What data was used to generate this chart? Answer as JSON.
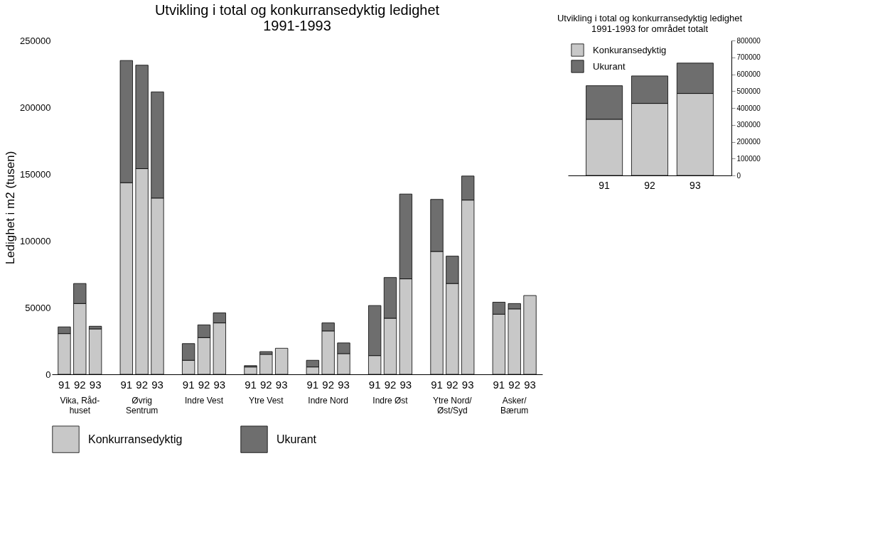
{
  "chart_data": [
    {
      "type": "bar",
      "title": "Utvikling i total og konkurransedyktig ledighet\n1991-1993",
      "ylabel": "Ledighet i m2 (tusen)",
      "categories": [
        "91",
        "92",
        "93",
        "91",
        "92",
        "93",
        "91",
        "92",
        "93",
        "91",
        "92",
        "93",
        "91",
        "92",
        "93",
        "91",
        "92",
        "93",
        "91",
        "92",
        "93",
        "91",
        "92",
        "93"
      ],
      "series": [
        {
          "name": "Konkurransedyktig",
          "color": "#c8c8c8",
          "values": [
            30500,
            53000,
            34000,
            143500,
            154000,
            132000,
            10500,
            27500,
            38500,
            5500,
            15000,
            19500,
            5500,
            32500,
            15500,
            14000,
            42000,
            71500,
            92000,
            68000,
            130500,
            45000,
            49000,
            59000
          ]
        },
        {
          "name": "Ukurant",
          "color": "#6e6e6e",
          "values": [
            5000,
            15000,
            2000,
            91500,
            77500,
            79500,
            12500,
            9500,
            7500,
            1000,
            2000,
            0,
            5000,
            6000,
            8000,
            37500,
            30500,
            63500,
            39000,
            20500,
            18000,
            9000,
            4000,
            0
          ]
        }
      ],
      "stacked": true,
      "ylim": [
        0,
        250000
      ],
      "yticks": [
        0,
        50000,
        100000,
        150000,
        200000,
        250000
      ],
      "legend": "bottom",
      "annotations": [
        "Vika, Råd-\nhuset",
        "Øvrig\nSentrum",
        "Indre Vest",
        "Ytre Vest",
        "Indre Nord",
        "Indre Øst",
        "Ytre Nord/\nØst/Syd",
        "Asker/\nBærum"
      ]
    },
    {
      "type": "bar",
      "title": "Utvikling i total og konkurransedyktig ledighet\n1991-1993  for området totalt",
      "categories": [
        "91",
        "92",
        "93"
      ],
      "series": [
        {
          "name": "Konkuransedyktig",
          "color": "#c8c8c8",
          "axis": "y2",
          "values": [
            333000,
            427000,
            486000
          ]
        },
        {
          "name": "Ukurant",
          "color": "#6e6e6e",
          "axis": "y2",
          "values": [
            199000,
            163000,
            180000
          ]
        }
      ],
      "stacked": true,
      "y2lim": [
        0,
        800000
      ],
      "y2ticks": [
        0,
        100000,
        200000,
        300000,
        400000,
        500000,
        600000,
        700000,
        800000
      ],
      "legend": "top left"
    }
  ]
}
